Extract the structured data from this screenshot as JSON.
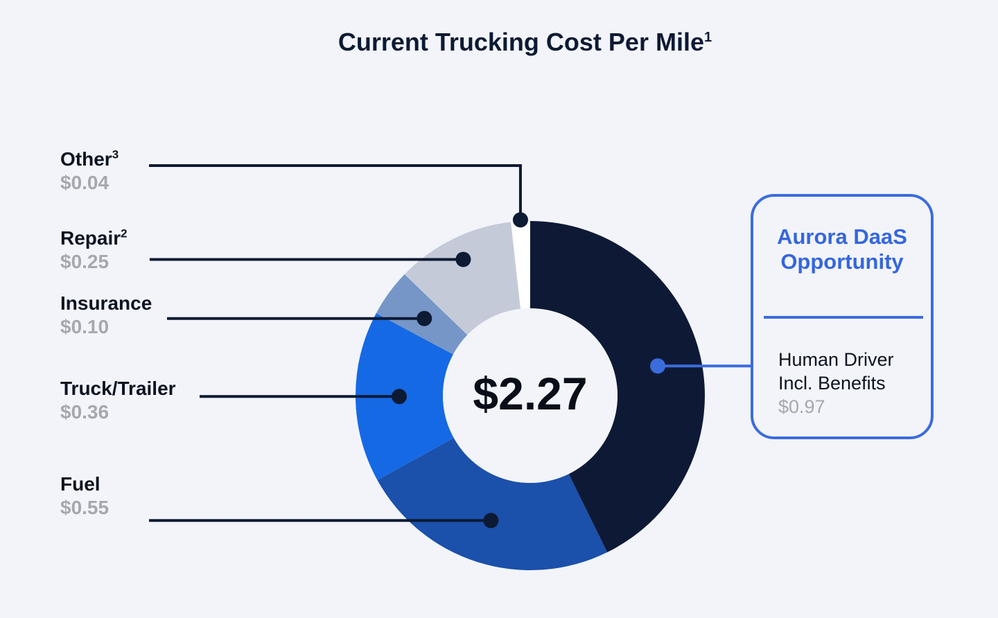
{
  "chart_data": {
    "type": "pie",
    "title": "Current Trucking Cost Per Mile",
    "title_sup": "1",
    "total": "$2.27",
    "slices": [
      {
        "name": "Human Driver Incl. Benefits",
        "value": 0.97,
        "label": "$0.97",
        "color": "#0e1a35"
      },
      {
        "name": "Fuel",
        "value": 0.55,
        "label": "$0.55",
        "color": "#1b50ab"
      },
      {
        "name": "Truck/Trailer",
        "value": 0.36,
        "label": "$0.36",
        "color": "#1669e4"
      },
      {
        "name": "Insurance",
        "value": 0.1,
        "label": "$0.10",
        "color": "#7596c7"
      },
      {
        "name": "Repair",
        "sup": "2",
        "value": 0.25,
        "label": "$0.25",
        "color": "#c4cad8"
      },
      {
        "name": "Other",
        "sup": "3",
        "value": 0.04,
        "label": "$0.04",
        "color": "#ffffff"
      }
    ]
  },
  "callout": {
    "title_line1": "Aurora DaaS",
    "title_line2": "Opportunity",
    "body_line1": "Human Driver",
    "body_line2": "Incl. Benefits",
    "value": "$0.97"
  },
  "colors": {
    "accent": "#3b6cde",
    "leader": "#0d1a33",
    "muted": "#a5a8ae"
  }
}
